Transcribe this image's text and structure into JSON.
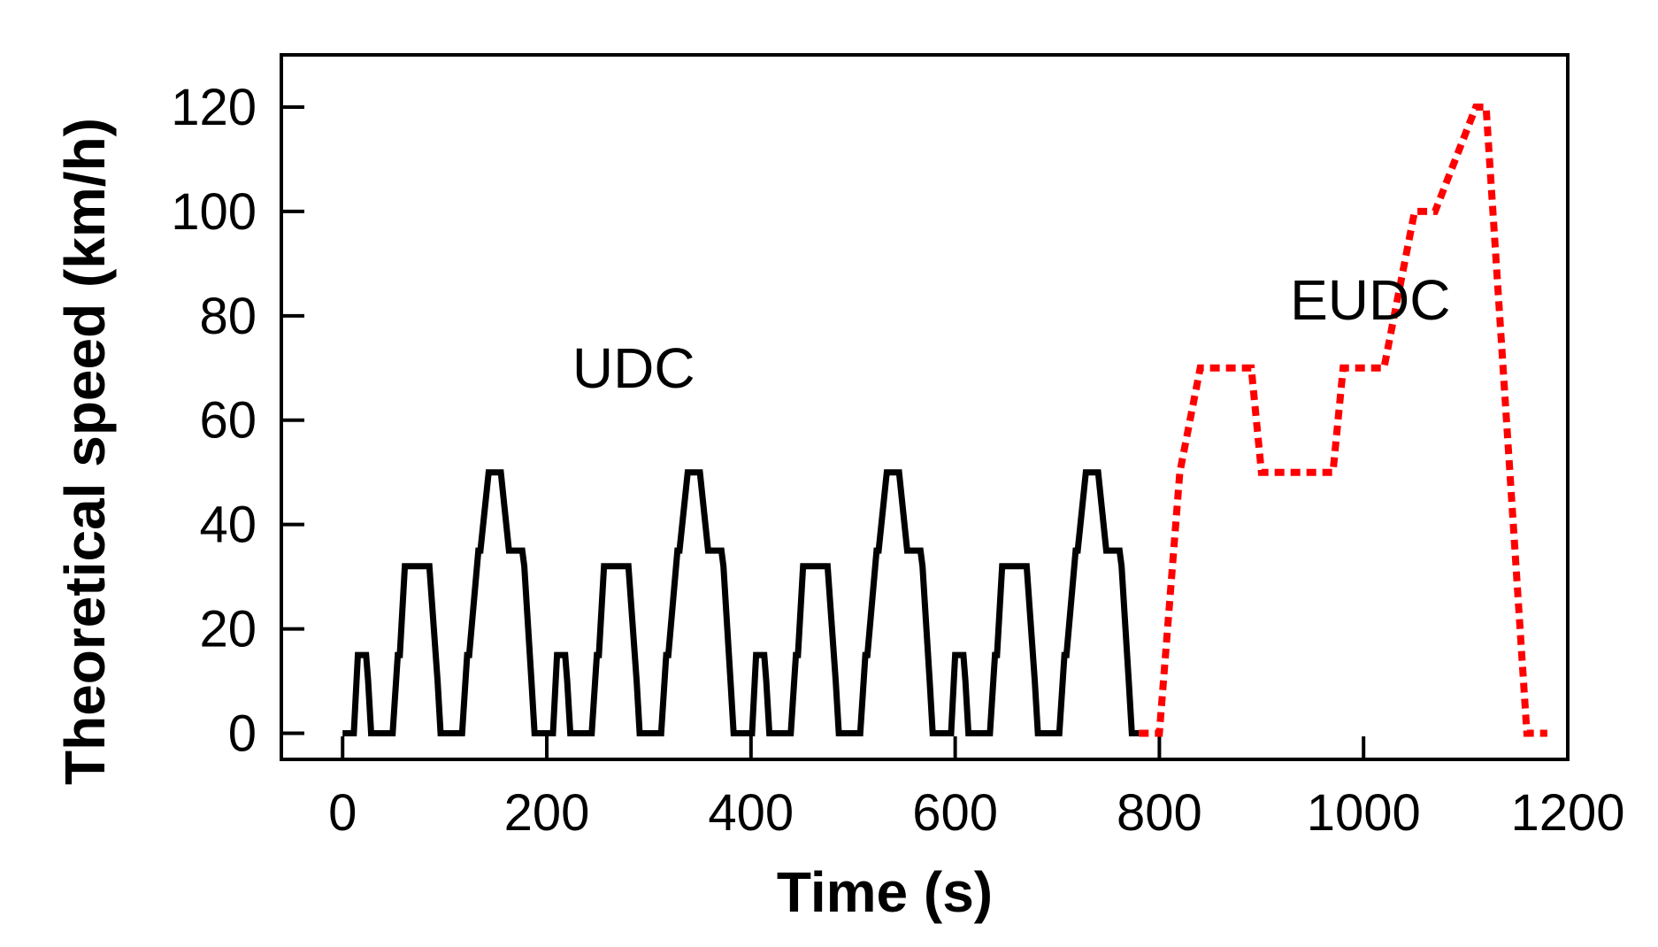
{
  "chart_data": {
    "type": "line",
    "title": "",
    "xlabel": "Time (s)",
    "ylabel": "Theoretical speed (km/h)",
    "xlim": [
      -60,
      1200
    ],
    "ylim": [
      -5,
      130
    ],
    "xticks": [
      0,
      200,
      400,
      600,
      800,
      1000,
      1200
    ],
    "yticks": [
      0,
      20,
      40,
      60,
      80,
      100,
      120
    ],
    "grid": false,
    "legend": "none",
    "annotations": [
      {
        "text": "UDC",
        "x": 225,
        "y": 70
      },
      {
        "text": "EUDC",
        "x": 928,
        "y": 83
      }
    ],
    "udc_cycle": {
      "x": [
        0,
        11,
        15,
        23,
        25,
        28,
        49,
        54,
        56,
        61,
        85,
        93,
        96,
        117,
        122,
        124,
        133,
        135,
        143,
        155,
        163,
        176,
        178,
        185,
        188,
        195
      ],
      "y": [
        0,
        0,
        15,
        15,
        10,
        0,
        0,
        15,
        15,
        32,
        32,
        10,
        0,
        0,
        15,
        15,
        35,
        35,
        50,
        50,
        35,
        35,
        32,
        10,
        0,
        0
      ]
    },
    "series": [
      {
        "name": "",
        "color": "#000000",
        "dash": "solid",
        "cycles": 4,
        "cycle_length": 195
      },
      {
        "name": "",
        "color": "#ff0000",
        "dash": "dotted",
        "x": [
          780,
          800,
          820,
          840,
          890,
          900,
          970,
          980,
          1020,
          1050,
          1070,
          1110,
          1120,
          1160,
          1180
        ],
        "y": [
          0,
          0,
          50,
          70,
          70,
          50,
          50,
          70,
          70,
          100,
          100,
          120,
          120,
          0,
          0
        ]
      }
    ]
  }
}
